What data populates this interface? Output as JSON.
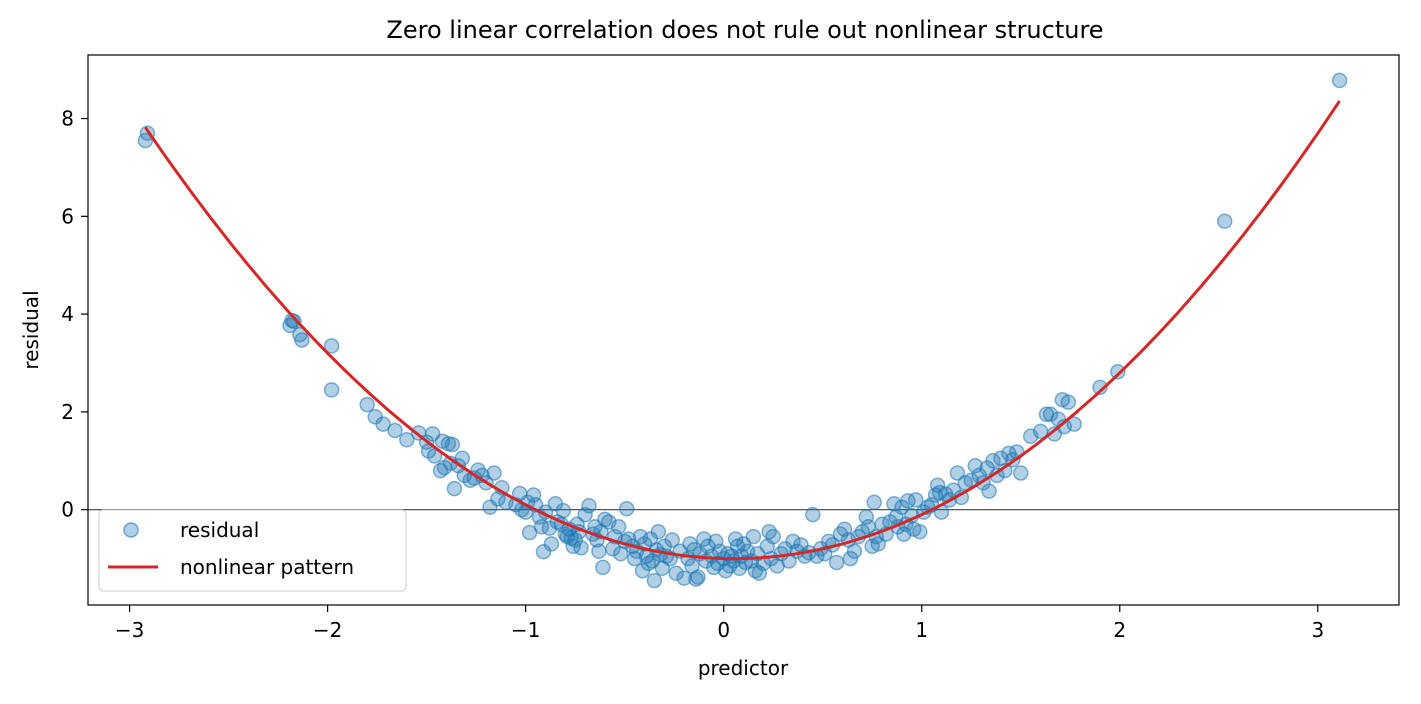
{
  "chart_data": {
    "type": "scatter",
    "title": "Zero linear correlation does not rule out nonlinear structure",
    "xlabel": "predictor",
    "ylabel": "residual",
    "xlim": [
      -3.21,
      3.41
    ],
    "ylim": [
      -1.95,
      9.3
    ],
    "xticks": [
      -3,
      -2,
      -1,
      0,
      1,
      2,
      3
    ],
    "xtick_labels": [
      "−3",
      "−2",
      "−1",
      "0",
      "1",
      "2",
      "3"
    ],
    "yticks": [
      0,
      2,
      4,
      6,
      8
    ],
    "ytick_labels": [
      "0",
      "2",
      "4",
      "6",
      "8"
    ],
    "grid": false,
    "reference_line_y": 0,
    "legend": {
      "position": "lower-left",
      "entries": [
        "residual",
        "nonlinear pattern"
      ]
    },
    "series": [
      {
        "name": "residual",
        "kind": "scatter",
        "color": "#1f77b4",
        "points": [
          [
            -2.92,
            7.55
          ],
          [
            -2.91,
            7.7
          ],
          [
            -2.19,
            3.77
          ],
          [
            -2.18,
            3.87
          ],
          [
            -2.17,
            3.85
          ],
          [
            -2.14,
            3.58
          ],
          [
            -2.13,
            3.47
          ],
          [
            -1.98,
            3.35
          ],
          [
            -1.98,
            2.45
          ],
          [
            -1.8,
            2.15
          ],
          [
            -1.76,
            1.9
          ],
          [
            -1.72,
            1.75
          ],
          [
            -1.66,
            1.62
          ],
          [
            -1.6,
            1.43
          ],
          [
            -1.54,
            1.57
          ],
          [
            -1.5,
            1.38
          ],
          [
            -1.49,
            1.2
          ],
          [
            -1.47,
            1.55
          ],
          [
            -1.46,
            1.1
          ],
          [
            -1.42,
            1.4
          ],
          [
            -1.43,
            0.8
          ],
          [
            -1.41,
            0.86
          ],
          [
            -1.39,
            1.35
          ],
          [
            -1.38,
            0.95
          ],
          [
            -1.37,
            1.33
          ],
          [
            -1.36,
            0.43
          ],
          [
            -1.34,
            0.9
          ],
          [
            -1.32,
            1.05
          ],
          [
            -1.31,
            0.7
          ],
          [
            -1.28,
            0.6
          ],
          [
            -1.26,
            0.65
          ],
          [
            -1.24,
            0.81
          ],
          [
            -1.22,
            0.7
          ],
          [
            -1.2,
            0.55
          ],
          [
            -1.18,
            0.05
          ],
          [
            -1.16,
            0.75
          ],
          [
            -1.14,
            0.22
          ],
          [
            -1.12,
            0.45
          ],
          [
            -1.1,
            0.15
          ],
          [
            -1.05,
            0.1
          ],
          [
            -1.03,
            0.33
          ],
          [
            -1.02,
            0.0
          ],
          [
            -1.0,
            -0.05
          ],
          [
            -0.99,
            0.15
          ],
          [
            -0.98,
            -0.47
          ],
          [
            -0.96,
            0.3
          ],
          [
            -0.95,
            0.1
          ],
          [
            -0.93,
            -0.15
          ],
          [
            -0.92,
            -0.35
          ],
          [
            -0.91,
            -0.86
          ],
          [
            -0.9,
            -0.05
          ],
          [
            -0.88,
            -0.38
          ],
          [
            -0.87,
            -0.7
          ],
          [
            -0.85,
            0.12
          ],
          [
            -0.84,
            -0.25
          ],
          [
            -0.82,
            -0.3
          ],
          [
            -0.81,
            -0.02
          ],
          [
            -0.8,
            -0.5
          ],
          [
            -0.79,
            -0.55
          ],
          [
            -0.78,
            -0.4
          ],
          [
            -0.77,
            -0.58
          ],
          [
            -0.76,
            -0.75
          ],
          [
            -0.75,
            -0.62
          ],
          [
            -0.74,
            -0.3
          ],
          [
            -0.73,
            -0.45
          ],
          [
            -0.72,
            -0.78
          ],
          [
            -0.7,
            -0.1
          ],
          [
            -0.68,
            0.08
          ],
          [
            -0.66,
            -0.5
          ],
          [
            -0.65,
            -0.35
          ],
          [
            -0.64,
            -0.62
          ],
          [
            -0.63,
            -0.85
          ],
          [
            -0.62,
            -0.45
          ],
          [
            -0.61,
            -1.18
          ],
          [
            -0.6,
            -0.2
          ],
          [
            -0.58,
            -0.25
          ],
          [
            -0.56,
            -0.8
          ],
          [
            -0.55,
            -0.55
          ],
          [
            -0.53,
            -0.35
          ],
          [
            -0.52,
            -0.9
          ],
          [
            -0.5,
            -0.65
          ],
          [
            -0.49,
            0.02
          ],
          [
            -0.48,
            -0.6
          ],
          [
            -0.46,
            -0.75
          ],
          [
            -0.45,
            -1.0
          ],
          [
            -0.44,
            -0.85
          ],
          [
            -0.42,
            -0.55
          ],
          [
            -0.41,
            -1.25
          ],
          [
            -0.4,
            -0.7
          ],
          [
            -0.39,
            -0.95
          ],
          [
            -0.38,
            -1.1
          ],
          [
            -0.37,
            -0.6
          ],
          [
            -0.36,
            -1.05
          ],
          [
            -0.35,
            -1.45
          ],
          [
            -0.34,
            -0.82
          ],
          [
            -0.33,
            -0.45
          ],
          [
            -0.32,
            -0.92
          ],
          [
            -0.31,
            -1.2
          ],
          [
            -0.3,
            -0.75
          ],
          [
            -0.29,
            -0.95
          ],
          [
            -0.27,
            -1.0
          ],
          [
            -0.26,
            -0.62
          ],
          [
            -0.24,
            -1.3
          ],
          [
            -0.22,
            -0.85
          ],
          [
            -0.2,
            -1.4
          ],
          [
            -0.18,
            -1.0
          ],
          [
            -0.17,
            -0.7
          ],
          [
            -0.16,
            -1.15
          ],
          [
            -0.15,
            -0.82
          ],
          [
            -0.14,
            -1.42
          ],
          [
            -0.13,
            -1.38
          ],
          [
            -0.12,
            -0.9
          ],
          [
            -0.1,
            -0.6
          ],
          [
            -0.09,
            -1.05
          ],
          [
            -0.08,
            -0.75
          ],
          [
            -0.06,
            -0.95
          ],
          [
            -0.05,
            -1.18
          ],
          [
            -0.04,
            -0.65
          ],
          [
            -0.03,
            -1.1
          ],
          [
            -0.02,
            -0.85
          ],
          [
            0.0,
            -1.0
          ],
          [
            0.01,
            -1.25
          ],
          [
            0.02,
            -0.9
          ],
          [
            0.03,
            -1.15
          ],
          [
            0.04,
            -0.95
          ],
          [
            0.05,
            -1.05
          ],
          [
            0.06,
            -0.6
          ],
          [
            0.07,
            -0.75
          ],
          [
            0.08,
            -1.2
          ],
          [
            0.09,
            -0.95
          ],
          [
            0.1,
            -0.7
          ],
          [
            0.11,
            -1.08
          ],
          [
            0.12,
            -0.85
          ],
          [
            0.14,
            -1.05
          ],
          [
            0.15,
            -0.55
          ],
          [
            0.16,
            -1.25
          ],
          [
            0.17,
            -0.9
          ],
          [
            0.18,
            -1.3
          ],
          [
            0.2,
            -1.1
          ],
          [
            0.22,
            -0.75
          ],
          [
            0.23,
            -0.45
          ],
          [
            0.24,
            -1.0
          ],
          [
            0.25,
            -0.55
          ],
          [
            0.27,
            -1.15
          ],
          [
            0.29,
            -0.9
          ],
          [
            0.31,
            -0.8
          ],
          [
            0.33,
            -1.05
          ],
          [
            0.35,
            -0.65
          ],
          [
            0.37,
            -0.85
          ],
          [
            0.39,
            -0.72
          ],
          [
            0.41,
            -0.95
          ],
          [
            0.43,
            -0.88
          ],
          [
            0.45,
            -0.1
          ],
          [
            0.47,
            -0.95
          ],
          [
            0.49,
            -0.8
          ],
          [
            0.51,
            -0.9
          ],
          [
            0.53,
            -0.65
          ],
          [
            0.55,
            -0.72
          ],
          [
            0.57,
            -1.08
          ],
          [
            0.59,
            -0.5
          ],
          [
            0.61,
            -0.4
          ],
          [
            0.63,
            -0.62
          ],
          [
            0.64,
            -1.0
          ],
          [
            0.66,
            -0.85
          ],
          [
            0.68,
            -0.55
          ],
          [
            0.7,
            -0.45
          ],
          [
            0.72,
            -0.15
          ],
          [
            0.73,
            -0.35
          ],
          [
            0.75,
            -0.75
          ],
          [
            0.76,
            0.15
          ],
          [
            0.77,
            -0.55
          ],
          [
            0.78,
            -0.7
          ],
          [
            0.8,
            -0.3
          ],
          [
            0.82,
            -0.5
          ],
          [
            0.84,
            -0.25
          ],
          [
            0.86,
            0.12
          ],
          [
            0.87,
            -0.15
          ],
          [
            0.88,
            -0.35
          ],
          [
            0.9,
            0.05
          ],
          [
            0.91,
            -0.5
          ],
          [
            0.92,
            -0.3
          ],
          [
            0.93,
            0.18
          ],
          [
            0.95,
            -0.12
          ],
          [
            0.96,
            -0.4
          ],
          [
            0.97,
            0.2
          ],
          [
            0.99,
            -0.45
          ],
          [
            1.01,
            -0.05
          ],
          [
            1.03,
            0.05
          ],
          [
            1.05,
            0.1
          ],
          [
            1.07,
            0.3
          ],
          [
            1.08,
            0.5
          ],
          [
            1.09,
            0.35
          ],
          [
            1.1,
            -0.05
          ],
          [
            1.12,
            0.32
          ],
          [
            1.14,
            0.2
          ],
          [
            1.16,
            0.4
          ],
          [
            1.18,
            0.75
          ],
          [
            1.2,
            0.25
          ],
          [
            1.22,
            0.55
          ],
          [
            1.25,
            0.6
          ],
          [
            1.27,
            0.9
          ],
          [
            1.29,
            0.7
          ],
          [
            1.31,
            0.55
          ],
          [
            1.33,
            0.85
          ],
          [
            1.34,
            0.38
          ],
          [
            1.36,
            1.0
          ],
          [
            1.38,
            0.7
          ],
          [
            1.4,
            1.05
          ],
          [
            1.42,
            0.8
          ],
          [
            1.44,
            1.15
          ],
          [
            1.46,
            1.02
          ],
          [
            1.48,
            1.18
          ],
          [
            1.5,
            0.75
          ],
          [
            1.55,
            1.5
          ],
          [
            1.6,
            1.6
          ],
          [
            1.63,
            1.95
          ],
          [
            1.65,
            1.95
          ],
          [
            1.67,
            1.55
          ],
          [
            1.69,
            1.85
          ],
          [
            1.71,
            2.25
          ],
          [
            1.72,
            1.7
          ],
          [
            1.74,
            2.2
          ],
          [
            1.77,
            1.75
          ],
          [
            1.9,
            2.5
          ],
          [
            1.99,
            2.82
          ],
          [
            2.53,
            5.9
          ],
          [
            3.11,
            8.78
          ]
        ]
      },
      {
        "name": "nonlinear pattern",
        "kind": "line",
        "color": "#d62728",
        "equation": "y = x^2 - 0.1x - 1",
        "x_range": [
          -2.92,
          3.11
        ]
      }
    ]
  }
}
